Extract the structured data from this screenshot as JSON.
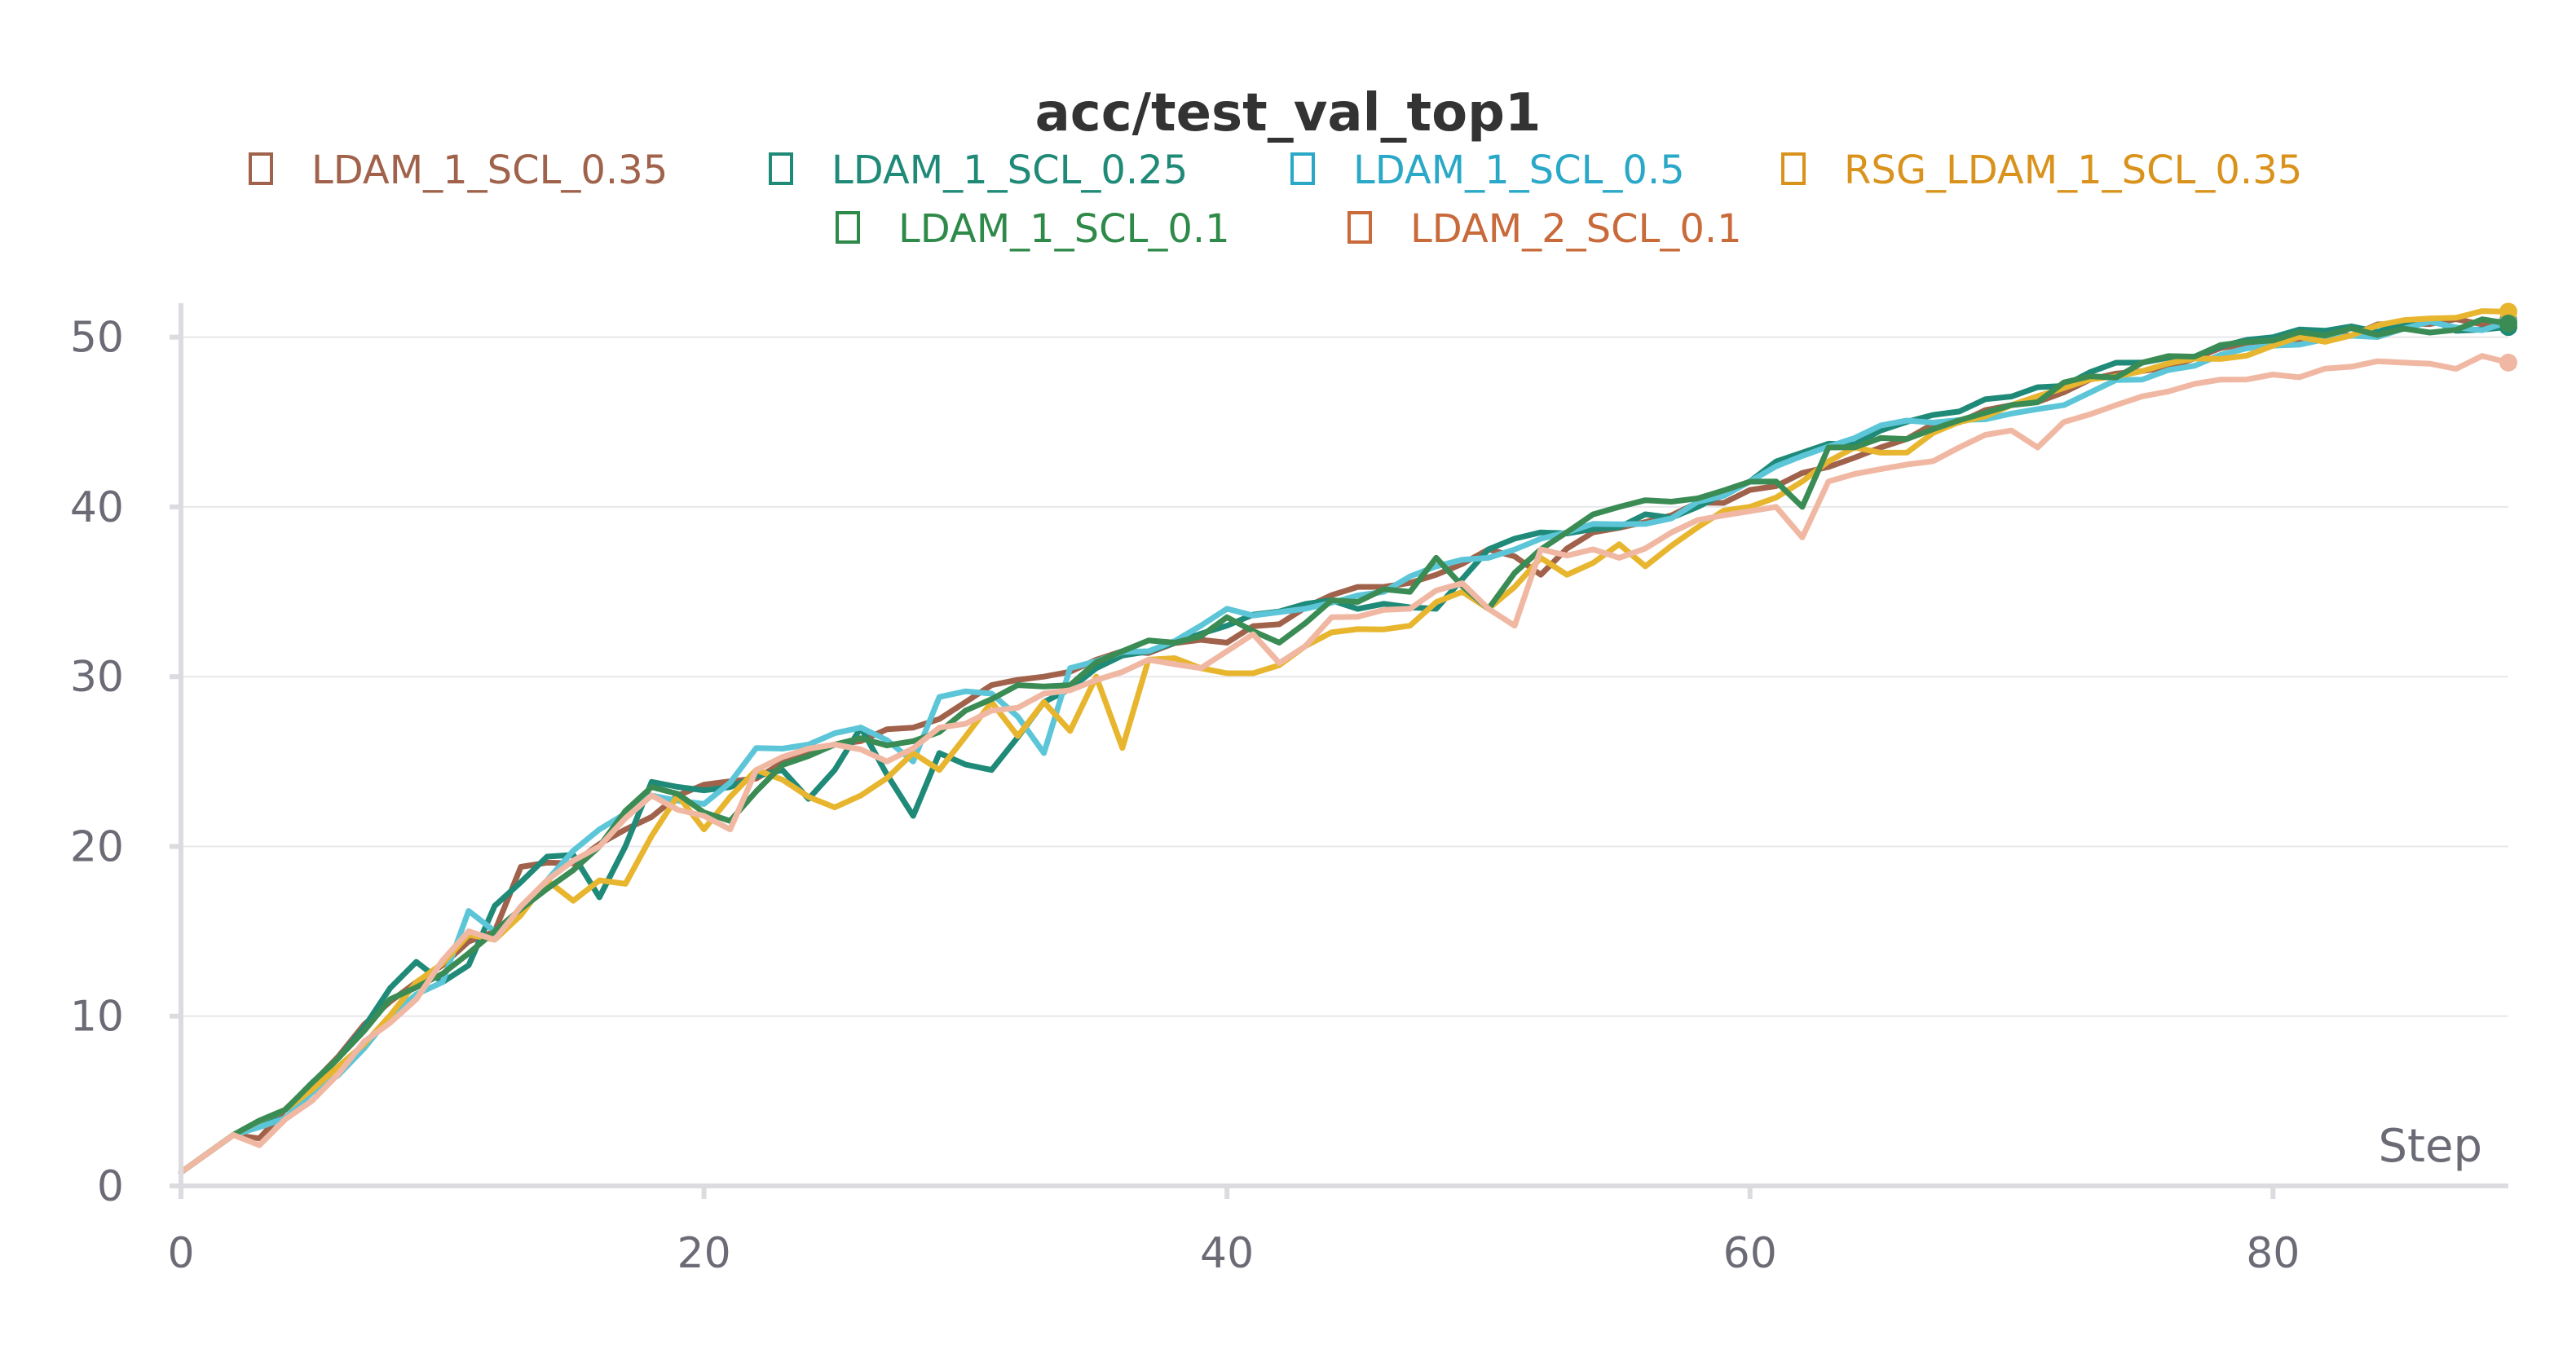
{
  "chart_data": {
    "type": "line",
    "title": "acc/test_val_top1",
    "xlabel": "Step",
    "ylabel": "",
    "xlim": [
      0,
      89
    ],
    "ylim": [
      0,
      52
    ],
    "xticks": [
      0,
      20,
      40,
      60,
      80
    ],
    "yticks": [
      0,
      10,
      20,
      30,
      40,
      50
    ],
    "grid": true,
    "legend_position": "top-center",
    "legend_marker": "□",
    "series": [
      {
        "name": "LDAM_1_SCL_0.35",
        "color": "#a0624b",
        "text_color": "#a0624b",
        "anchors": [
          [
            0,
            0.8
          ],
          [
            2,
            3.0
          ],
          [
            3,
            2.8
          ],
          [
            5,
            6.0
          ],
          [
            7,
            9.5
          ],
          [
            9,
            12.0
          ],
          [
            10,
            13.0
          ],
          [
            12,
            15.0
          ],
          [
            13,
            18.8
          ],
          [
            15,
            19.0
          ],
          [
            17,
            21.0
          ],
          [
            19,
            23.0
          ],
          [
            22,
            24.0
          ],
          [
            25,
            26.0
          ],
          [
            28,
            27.0
          ],
          [
            30,
            28.5
          ],
          [
            31,
            29.5
          ],
          [
            33,
            30.0
          ],
          [
            35,
            31.0
          ],
          [
            36,
            31.5
          ],
          [
            40,
            32.0
          ],
          [
            44,
            34.8
          ],
          [
            48,
            36.0
          ],
          [
            50,
            37.5
          ],
          [
            52,
            36.0
          ],
          [
            54,
            38.5
          ],
          [
            57,
            39.5
          ],
          [
            60,
            41.0
          ],
          [
            62,
            42.0
          ],
          [
            65,
            43.5
          ],
          [
            70,
            46.0
          ],
          [
            75,
            48.0
          ],
          [
            80,
            49.8
          ],
          [
            85,
            50.8
          ],
          [
            89,
            51.0
          ]
        ]
      },
      {
        "name": "LDAM_1_SCL_0.25",
        "color": "#1f8a78",
        "text_color": "#1f8a78",
        "anchors": [
          [
            0,
            0.8
          ],
          [
            2,
            3.0
          ],
          [
            4,
            4.5
          ],
          [
            6,
            7.5
          ],
          [
            9,
            13.2
          ],
          [
            10,
            12.0
          ],
          [
            11,
            13.0
          ],
          [
            12,
            16.5
          ],
          [
            14,
            19.4
          ],
          [
            15,
            19.5
          ],
          [
            16,
            17.0
          ],
          [
            18,
            23.8
          ],
          [
            21,
            23.5
          ],
          [
            23,
            24.5
          ],
          [
            24,
            22.8
          ],
          [
            26,
            27.0
          ],
          [
            28,
            21.8
          ],
          [
            29,
            25.5
          ],
          [
            31,
            24.5
          ],
          [
            33,
            28.5
          ],
          [
            35,
            30.5
          ],
          [
            38,
            32.0
          ],
          [
            40,
            33.0
          ],
          [
            44,
            34.5
          ],
          [
            48,
            34.0
          ],
          [
            50,
            37.5
          ],
          [
            52,
            38.5
          ],
          [
            55,
            38.8
          ],
          [
            58,
            40.0
          ],
          [
            60,
            41.5
          ],
          [
            62,
            43.2
          ],
          [
            65,
            44.5
          ],
          [
            70,
            46.5
          ],
          [
            75,
            48.5
          ],
          [
            80,
            50.0
          ],
          [
            85,
            50.8
          ],
          [
            89,
            50.6
          ]
        ]
      },
      {
        "name": "LDAM_1_SCL_0.5",
        "color": "#5cc6d8",
        "text_color": "#2aa8c8",
        "anchors": [
          [
            0,
            0.8
          ],
          [
            2,
            3.0
          ],
          [
            4,
            4.0
          ],
          [
            6,
            6.5
          ],
          [
            8,
            10.0
          ],
          [
            10,
            12.0
          ],
          [
            11,
            16.2
          ],
          [
            12,
            15.0
          ],
          [
            14,
            18.0
          ],
          [
            16,
            21.0
          ],
          [
            18,
            23.0
          ],
          [
            20,
            22.5
          ],
          [
            22,
            25.8
          ],
          [
            24,
            26.0
          ],
          [
            26,
            27.0
          ],
          [
            28,
            25.0
          ],
          [
            29,
            28.8
          ],
          [
            31,
            29.0
          ],
          [
            33,
            25.5
          ],
          [
            34,
            30.5
          ],
          [
            37,
            31.5
          ],
          [
            39,
            33.0
          ],
          [
            40,
            34.0
          ],
          [
            43,
            34.0
          ],
          [
            46,
            35.0
          ],
          [
            48,
            36.5
          ],
          [
            50,
            37.0
          ],
          [
            53,
            38.5
          ],
          [
            56,
            39.0
          ],
          [
            60,
            41.5
          ],
          [
            62,
            43.0
          ],
          [
            65,
            44.8
          ],
          [
            70,
            45.5
          ],
          [
            75,
            47.5
          ],
          [
            80,
            49.5
          ],
          [
            85,
            50.5
          ],
          [
            89,
            50.9
          ]
        ]
      },
      {
        "name": "RSG_LDAM_1_SCL_0.35",
        "color": "#e8b52e",
        "text_color": "#d9931c",
        "anchors": [
          [
            0,
            0.8
          ],
          [
            2,
            3.0
          ],
          [
            4,
            4.5
          ],
          [
            6,
            7.0
          ],
          [
            9,
            12.0
          ],
          [
            11,
            14.8
          ],
          [
            12,
            14.5
          ],
          [
            14,
            18.0
          ],
          [
            15,
            16.8
          ],
          [
            16,
            18.0
          ],
          [
            17,
            17.8
          ],
          [
            19,
            23.0
          ],
          [
            20,
            21.0
          ],
          [
            22,
            24.5
          ],
          [
            25,
            22.3
          ],
          [
            26,
            23.0
          ],
          [
            28,
            25.5
          ],
          [
            29,
            24.5
          ],
          [
            31,
            28.5
          ],
          [
            32,
            26.5
          ],
          [
            33,
            28.5
          ],
          [
            34,
            26.8
          ],
          [
            35,
            30.0
          ],
          [
            36,
            25.8
          ],
          [
            37,
            31.0
          ],
          [
            39,
            30.5
          ],
          [
            41,
            30.2
          ],
          [
            43,
            31.8
          ],
          [
            45,
            32.8
          ],
          [
            47,
            33.0
          ],
          [
            49,
            35.0
          ],
          [
            50,
            34.0
          ],
          [
            52,
            37.0
          ],
          [
            53,
            36.0
          ],
          [
            55,
            37.8
          ],
          [
            56,
            36.5
          ],
          [
            58,
            38.8
          ],
          [
            60,
            40.0
          ],
          [
            62,
            41.5
          ],
          [
            64,
            43.5
          ],
          [
            66,
            43.2
          ],
          [
            68,
            45.0
          ],
          [
            70,
            46.0
          ],
          [
            72,
            47.0
          ],
          [
            75,
            48.0
          ],
          [
            80,
            49.5
          ],
          [
            85,
            51.0
          ],
          [
            89,
            51.5
          ]
        ]
      },
      {
        "name": "LDAM_1_SCL_0.1",
        "color": "#3a8c54",
        "text_color": "#2f8a4a",
        "anchors": [
          [
            0,
            0.8
          ],
          [
            2,
            3.0
          ],
          [
            4,
            4.5
          ],
          [
            6,
            7.5
          ],
          [
            8,
            11.0
          ],
          [
            10,
            12.5
          ],
          [
            12,
            15.0
          ],
          [
            14,
            17.5
          ],
          [
            16,
            20.0
          ],
          [
            18,
            23.5
          ],
          [
            20,
            22.0
          ],
          [
            21,
            21.5
          ],
          [
            23,
            24.8
          ],
          [
            25,
            26.0
          ],
          [
            28,
            26.2
          ],
          [
            30,
            28.0
          ],
          [
            32,
            29.5
          ],
          [
            34,
            29.5
          ],
          [
            36,
            31.5
          ],
          [
            38,
            32.0
          ],
          [
            40,
            33.5
          ],
          [
            42,
            32.0
          ],
          [
            44,
            34.5
          ],
          [
            47,
            35.0
          ],
          [
            48,
            37.0
          ],
          [
            50,
            34.0
          ],
          [
            52,
            37.5
          ],
          [
            55,
            40.0
          ],
          [
            58,
            40.5
          ],
          [
            61,
            41.5
          ],
          [
            62,
            40.0
          ],
          [
            63,
            43.5
          ],
          [
            66,
            44.0
          ],
          [
            70,
            46.0
          ],
          [
            75,
            48.5
          ],
          [
            80,
            49.8
          ],
          [
            85,
            50.5
          ],
          [
            89,
            50.8
          ]
        ]
      },
      {
        "name": "LDAM_2_SCL_0.1",
        "color": "#f0b8a2",
        "text_color": "#c86a3a",
        "anchors": [
          [
            0,
            0.8
          ],
          [
            2,
            3.0
          ],
          [
            3,
            2.4
          ],
          [
            5,
            5.0
          ],
          [
            7,
            8.5
          ],
          [
            9,
            11.0
          ],
          [
            11,
            15.0
          ],
          [
            12,
            14.5
          ],
          [
            14,
            18.0
          ],
          [
            16,
            20.0
          ],
          [
            18,
            23.0
          ],
          [
            20,
            21.8
          ],
          [
            21,
            21.0
          ],
          [
            22,
            24.5
          ],
          [
            25,
            26.0
          ],
          [
            27,
            25.0
          ],
          [
            29,
            27.0
          ],
          [
            31,
            28.0
          ],
          [
            33,
            29.0
          ],
          [
            35,
            29.8
          ],
          [
            37,
            31.0
          ],
          [
            39,
            30.5
          ],
          [
            41,
            32.5
          ],
          [
            42,
            30.8
          ],
          [
            44,
            33.5
          ],
          [
            47,
            34.0
          ],
          [
            49,
            35.5
          ],
          [
            51,
            33.0
          ],
          [
            52,
            37.5
          ],
          [
            54,
            37.5
          ],
          [
            55,
            37.0
          ],
          [
            57,
            38.5
          ],
          [
            59,
            39.5
          ],
          [
            61,
            40.0
          ],
          [
            62,
            38.2
          ],
          [
            63,
            41.5
          ],
          [
            66,
            42.5
          ],
          [
            68,
            43.5
          ],
          [
            70,
            44.5
          ],
          [
            71,
            43.5
          ],
          [
            72,
            45.0
          ],
          [
            74,
            46.0
          ],
          [
            76,
            46.8
          ],
          [
            78,
            47.5
          ],
          [
            80,
            47.8
          ],
          [
            85,
            48.5
          ],
          [
            89,
            48.5
          ]
        ]
      }
    ]
  }
}
